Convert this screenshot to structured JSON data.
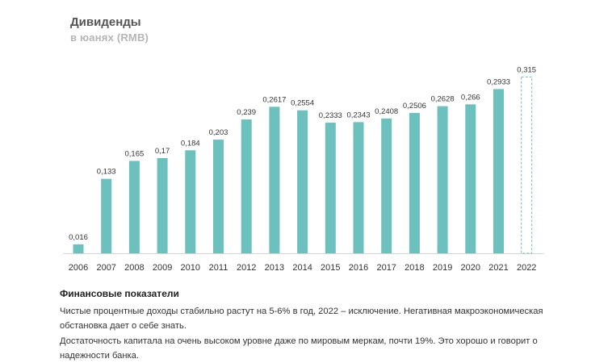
{
  "chart_data": {
    "type": "bar",
    "title": "Дивиденды",
    "subtitle": "в юанях (RMB)",
    "categories": [
      "2006",
      "2007",
      "2008",
      "2009",
      "2010",
      "2011",
      "2012",
      "2013",
      "2014",
      "2015",
      "2016",
      "2017",
      "2018",
      "2019",
      "2020",
      "2021",
      "2022"
    ],
    "values": [
      0.016,
      0.133,
      0.165,
      0.17,
      0.184,
      0.203,
      0.239,
      0.2617,
      0.2554,
      0.2333,
      0.2343,
      0.2408,
      0.2506,
      0.2628,
      0.266,
      0.2933,
      0.315
    ],
    "labels": [
      "0,016",
      "0,133",
      "0,165",
      "0,17",
      "0,184",
      "0,203",
      "0,239",
      "0,2617",
      "0,2554",
      "0,2333",
      "0,2343",
      "0,2408",
      "0,2506",
      "0,2628",
      "0,266",
      "0,2933",
      "0,315"
    ],
    "projected": [
      false,
      false,
      false,
      false,
      false,
      false,
      false,
      false,
      false,
      false,
      false,
      false,
      false,
      false,
      false,
      false,
      true
    ],
    "ylim": [
      0,
      0.34
    ],
    "xlabel": "",
    "ylabel": "",
    "grid": false,
    "colors": {
      "bar": "#6cc0bd",
      "projected_stroke": "#6cc0bd",
      "axis": "#d4d4d4",
      "label": "#333333"
    }
  },
  "financials": {
    "heading": "Финансовые показатели",
    "paragraphs": [
      "Чистые процентные доходы стабильно растут на 5-6% в год, 2022 – исключение. Негативная макроэкономическая обстановка дает о себе знать.",
      "Достаточность капитала на очень высоком уровне даже по мировым меркам, почти 19%. Это хорошо и говорит о надежности банка."
    ]
  }
}
